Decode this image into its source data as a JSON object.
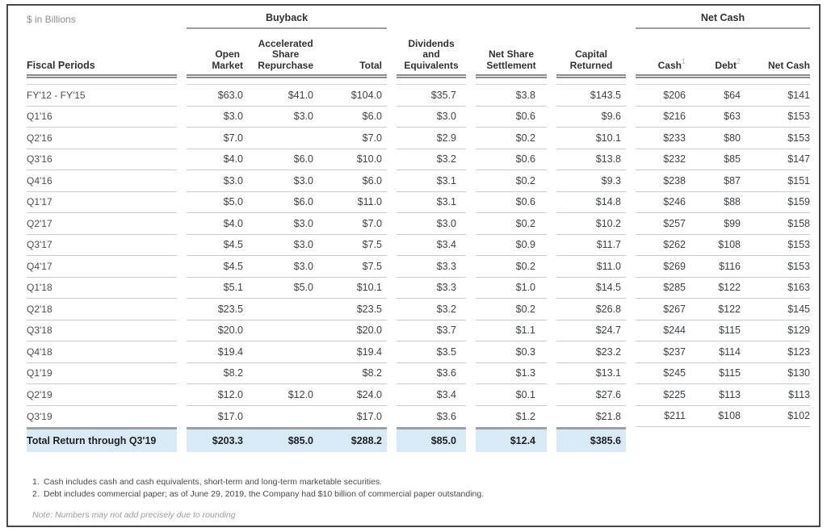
{
  "units_label": "$ in Billions",
  "groups": {
    "buyback": "Buyback",
    "net_cash": "Net Cash"
  },
  "columns": {
    "fiscal_periods": "Fiscal Periods",
    "open_market": "Open\nMarket",
    "accelerated_share_repurchase": "Accelerated\nShare\nRepurchase",
    "buyback_total": "Total",
    "dividends": "Dividends\nand\nEquivalents",
    "net_share_settlement": "Net Share\nSettlement",
    "capital_returned": "Capital\nReturned",
    "cash": "Cash",
    "cash_sup": "1",
    "debt": "Debt",
    "debt_sup": "2",
    "net_cash": "Net Cash"
  },
  "rows": [
    {
      "period": "FY'12 - FY'15",
      "open_market": "$63.0",
      "asr": "$41.0",
      "buyback_total": "$104.0",
      "dividends": "$35.7",
      "net_share_settlement": "$3.8",
      "capital_returned": "$143.5",
      "cash": "$206",
      "debt": "$64",
      "net_cash": "$141"
    },
    {
      "period": "Q1'16",
      "open_market": "$3.0",
      "asr": "$3.0",
      "buyback_total": "$6.0",
      "dividends": "$3.0",
      "net_share_settlement": "$0.6",
      "capital_returned": "$9.6",
      "cash": "$216",
      "debt": "$63",
      "net_cash": "$153"
    },
    {
      "period": "Q2'16",
      "open_market": "$7.0",
      "asr": "",
      "buyback_total": "$7.0",
      "dividends": "$2.9",
      "net_share_settlement": "$0.2",
      "capital_returned": "$10.1",
      "cash": "$233",
      "debt": "$80",
      "net_cash": "$153"
    },
    {
      "period": "Q3'16",
      "open_market": "$4.0",
      "asr": "$6.0",
      "buyback_total": "$10.0",
      "dividends": "$3.2",
      "net_share_settlement": "$0.6",
      "capital_returned": "$13.8",
      "cash": "$232",
      "debt": "$85",
      "net_cash": "$147"
    },
    {
      "period": "Q4'16",
      "open_market": "$3.0",
      "asr": "$3.0",
      "buyback_total": "$6.0",
      "dividends": "$3.1",
      "net_share_settlement": "$0.2",
      "capital_returned": "$9.3",
      "cash": "$238",
      "debt": "$87",
      "net_cash": "$151"
    },
    {
      "period": "Q1'17",
      "open_market": "$5.0",
      "asr": "$6.0",
      "buyback_total": "$11.0",
      "dividends": "$3.1",
      "net_share_settlement": "$0.6",
      "capital_returned": "$14.8",
      "cash": "$246",
      "debt": "$88",
      "net_cash": "$159"
    },
    {
      "period": "Q2'17",
      "open_market": "$4.0",
      "asr": "$3.0",
      "buyback_total": "$7.0",
      "dividends": "$3.0",
      "net_share_settlement": "$0.2",
      "capital_returned": "$10.2",
      "cash": "$257",
      "debt": "$99",
      "net_cash": "$158"
    },
    {
      "period": "Q3'17",
      "open_market": "$4.5",
      "asr": "$3.0",
      "buyback_total": "$7.5",
      "dividends": "$3.4",
      "net_share_settlement": "$0.9",
      "capital_returned": "$11.7",
      "cash": "$262",
      "debt": "$108",
      "net_cash": "$153"
    },
    {
      "period": "Q4'17",
      "open_market": "$4.5",
      "asr": "$3.0",
      "buyback_total": "$7.5",
      "dividends": "$3.3",
      "net_share_settlement": "$0.2",
      "capital_returned": "$11.0",
      "cash": "$269",
      "debt": "$116",
      "net_cash": "$153"
    },
    {
      "period": "Q1'18",
      "open_market": "$5.1",
      "asr": "$5.0",
      "buyback_total": "$10.1",
      "dividends": "$3.3",
      "net_share_settlement": "$1.0",
      "capital_returned": "$14.5",
      "cash": "$285",
      "debt": "$122",
      "net_cash": "$163"
    },
    {
      "period": "Q2'18",
      "open_market": "$23.5",
      "asr": "",
      "buyback_total": "$23.5",
      "dividends": "$3.2",
      "net_share_settlement": "$0.2",
      "capital_returned": "$26.8",
      "cash": "$267",
      "debt": "$122",
      "net_cash": "$145"
    },
    {
      "period": "Q3'18",
      "open_market": "$20.0",
      "asr": "",
      "buyback_total": "$20.0",
      "dividends": "$3.7",
      "net_share_settlement": "$1.1",
      "capital_returned": "$24.7",
      "cash": "$244",
      "debt": "$115",
      "net_cash": "$129"
    },
    {
      "period": "Q4'18",
      "open_market": "$19.4",
      "asr": "",
      "buyback_total": "$19.4",
      "dividends": "$3.5",
      "net_share_settlement": "$0.3",
      "capital_returned": "$23.2",
      "cash": "$237",
      "debt": "$114",
      "net_cash": "$123"
    },
    {
      "period": "Q1'19",
      "open_market": "$8.2",
      "asr": "",
      "buyback_total": "$8.2",
      "dividends": "$3.6",
      "net_share_settlement": "$1.3",
      "capital_returned": "$13.1",
      "cash": "$245",
      "debt": "$115",
      "net_cash": "$130"
    },
    {
      "period": "Q2'19",
      "open_market": "$12.0",
      "asr": "$12.0",
      "buyback_total": "$24.0",
      "dividends": "$3.4",
      "net_share_settlement": "$0.1",
      "capital_returned": "$27.6",
      "cash": "$225",
      "debt": "$113",
      "net_cash": "$113"
    },
    {
      "period": "Q3'19",
      "open_market": "$17.0",
      "asr": "",
      "buyback_total": "$17.0",
      "dividends": "$3.6",
      "net_share_settlement": "$1.2",
      "capital_returned": "$21.8",
      "cash": "$211",
      "debt": "$108",
      "net_cash": "$102"
    }
  ],
  "total_row": {
    "period": "Total Return through Q3'19",
    "open_market": "$203.3",
    "asr": "$85.0",
    "buyback_total": "$288.2",
    "dividends": "$85.0",
    "net_share_settlement": "$12.4",
    "capital_returned": "$385.6"
  },
  "footnotes": [
    {
      "num": "1.",
      "text": "Cash includes cash and cash equivalents, short-term and long-term marketable securities."
    },
    {
      "num": "2.",
      "text": "Debt includes commercial paper; as of June 29, 2019, the Company had $10 billion of commercial paper outstanding."
    }
  ],
  "note": "Note: Numbers may not add precisely due to rounding",
  "colors": {
    "highlight": "#d8eaf6",
    "rule_dark": "#8b8b8b",
    "rule_light": "#cacaca"
  }
}
